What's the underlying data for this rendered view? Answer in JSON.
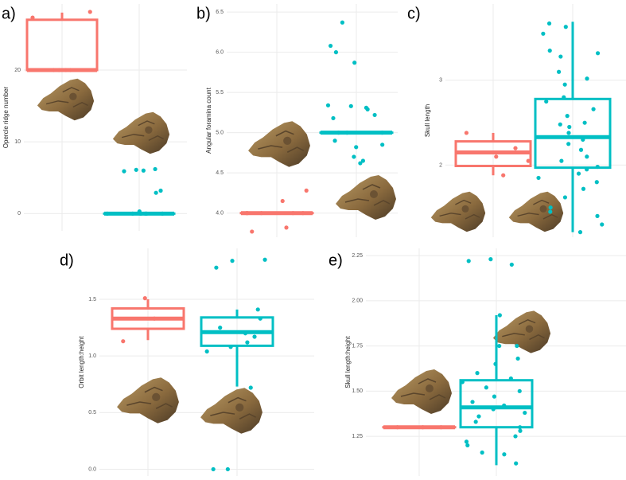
{
  "chart_data": [
    {
      "type": "box",
      "label": "a)",
      "y_label": "Opercle ridge number",
      "ylim": [
        -2.4,
        29.2
      ],
      "yticks": [
        0,
        10,
        20
      ],
      "series": [
        {
          "color": "#F8766D",
          "box": {
            "whislo": 20,
            "q1": 20,
            "med": 20,
            "q3": 27,
            "whishi": 28
          },
          "points": [
            28.1,
            27.3,
            20,
            20,
            20,
            20
          ]
        },
        {
          "color": "#00BFC4",
          "box": {
            "whislo": 0,
            "q1": 0,
            "med": 0,
            "q3": 0,
            "whishi": 0
          },
          "points": [
            6.2,
            6.0,
            6.1,
            5.9,
            3.2,
            2.9,
            0.3,
            0,
            0,
            0,
            0,
            0,
            0,
            0
          ]
        }
      ]
    },
    {
      "type": "box",
      "label": "b)",
      "y_label": "Angular foramina count",
      "ylim": [
        3.7,
        6.6
      ],
      "yticks": [
        {
          "value": 4,
          "label": "4.0"
        },
        4.5,
        {
          "value": 5,
          "label": "5.0"
        },
        5.5,
        {
          "value": 6,
          "label": "6.0"
        },
        6.5
      ],
      "series": [
        {
          "color": "#F8766D",
          "box": {
            "whislo": 4,
            "q1": 4,
            "med": 4,
            "q3": 4,
            "whishi": 4
          },
          "points": [
            4.28,
            4.15,
            3.82,
            3.77,
            4,
            4,
            4,
            4,
            4
          ]
        },
        {
          "color": "#00BFC4",
          "box": {
            "whislo": 5,
            "q1": 5,
            "med": 5,
            "q3": 5,
            "whishi": 5
          },
          "points": [
            6.37,
            6.08,
            6.0,
            5.87,
            5.33,
            5.34,
            5.31,
            5.29,
            5.22,
            5.18,
            4.9,
            4.85,
            4.82,
            4.7,
            4.65,
            4.62,
            5,
            5,
            5
          ]
        }
      ]
    },
    {
      "type": "box",
      "label": "c)",
      "y_label": "Skull length",
      "ylim": [
        1.15,
        3.9
      ],
      "yticks": [
        2,
        3
      ],
      "series": [
        {
          "color": "#F8766D",
          "box": {
            "whislo": 1.88,
            "q1": 1.99,
            "med": 2.15,
            "q3": 2.28,
            "whishi": 2.38
          },
          "points": [
            2.38,
            1.88,
            2.15,
            2.1,
            2.2,
            2.05
          ]
        },
        {
          "color": "#00BFC4",
          "box": {
            "whislo": 1.21,
            "q1": 1.97,
            "med": 2.33,
            "q3": 2.78,
            "whishi": 3.69
          },
          "points": [
            3.67,
            3.63,
            3.55,
            3.35,
            3.32,
            3.28,
            3.1,
            3.02,
            2.95,
            2.8,
            2.75,
            2.66,
            2.58,
            2.5,
            2.48,
            2.45,
            2.38,
            2.3,
            2.25,
            2.18,
            2.1,
            2.05,
            1.98,
            1.95,
            1.9,
            1.85,
            1.8,
            1.72,
            1.62,
            1.5,
            1.45,
            1.4,
            1.3,
            1.21
          ]
        }
      ]
    },
    {
      "type": "box",
      "label": "d)",
      "y_label": "Orbit length:height",
      "ylim": [
        -0.06,
        1.95
      ],
      "yticks": [
        {
          "value": 0,
          "label": "0.0"
        },
        0.5,
        {
          "value": 1,
          "label": "1.0"
        },
        1.5
      ],
      "series": [
        {
          "color": "#F8766D",
          "box": {
            "whislo": 1.14,
            "q1": 1.24,
            "med": 1.33,
            "q3": 1.42,
            "whishi": 1.5
          },
          "points": [
            1.51,
            1.13,
            1.33
          ]
        },
        {
          "color": "#00BFC4",
          "box": {
            "whislo": 0.73,
            "q1": 1.09,
            "med": 1.21,
            "q3": 1.34,
            "whishi": 1.41
          },
          "points": [
            1.85,
            1.84,
            1.78,
            1.41,
            1.33,
            1.25,
            1.2,
            1.17,
            1.12,
            1.08,
            1.04,
            0.72,
            0,
            0
          ]
        }
      ]
    },
    {
      "type": "box",
      "label": "e)",
      "y_label": "Skull length:height",
      "ylim": [
        1.03,
        2.29
      ],
      "yticks": [
        1.25,
        {
          "value": 1.5,
          "label": "1.50"
        },
        1.75,
        {
          "value": 2,
          "label": "2.00"
        },
        2.25
      ],
      "series": [
        {
          "color": "#F8766D",
          "box": {
            "whislo": 1.3,
            "q1": 1.3,
            "med": 1.3,
            "q3": 1.3,
            "whishi": 1.3
          },
          "points": [
            1.3,
            1.3,
            1.3
          ]
        },
        {
          "color": "#00BFC4",
          "box": {
            "whislo": 1.09,
            "q1": 1.3,
            "med": 1.41,
            "q3": 1.56,
            "whishi": 1.92
          },
          "points": [
            2.23,
            2.22,
            2.2,
            1.92,
            1.75,
            1.75,
            1.68,
            1.65,
            1.6,
            1.57,
            1.55,
            1.52,
            1.5,
            1.47,
            1.44,
            1.42,
            1.4,
            1.38,
            1.36,
            1.33,
            1.3,
            1.28,
            1.25,
            1.22,
            1.2,
            1.16,
            1.15,
            1.1
          ]
        }
      ]
    }
  ]
}
